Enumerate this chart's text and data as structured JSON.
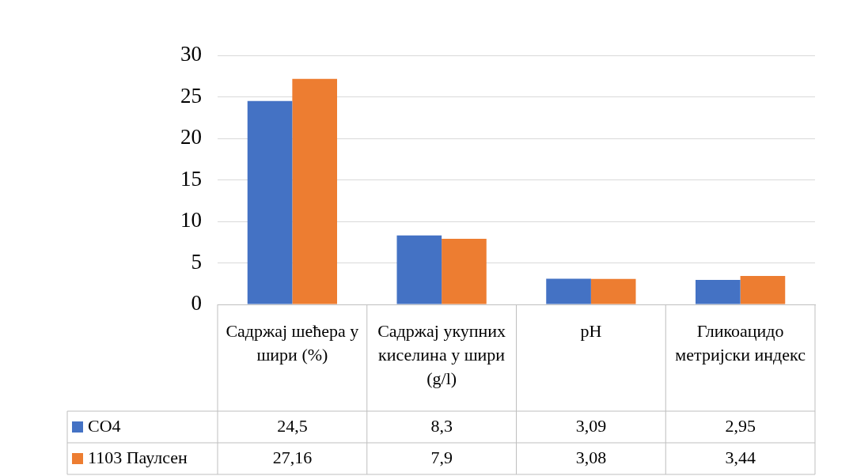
{
  "chart_data": {
    "type": "bar",
    "categories": [
      "Садржај шећера у шири (%)",
      "Садржај укупних киселина у шири (g/l)",
      "pH",
      "Гликоацидо метријски индекс"
    ],
    "series": [
      {
        "name": "CO4",
        "color": "#4472c4",
        "values": [
          24.5,
          8.3,
          3.09,
          2.95
        ],
        "value_labels": [
          "24,5",
          "8,3",
          "3,09",
          "2,95"
        ]
      },
      {
        "name": "1103 Паулсен",
        "color": "#ed7d31",
        "values": [
          27.16,
          7.9,
          3.08,
          3.44
        ],
        "value_labels": [
          "27,16",
          "7,9",
          "3,08",
          "3,44"
        ]
      }
    ],
    "ylim": [
      0,
      30
    ],
    "yticks": [
      0,
      5,
      10,
      15,
      20,
      25,
      30
    ],
    "grid": "y",
    "legend": "bottom"
  }
}
